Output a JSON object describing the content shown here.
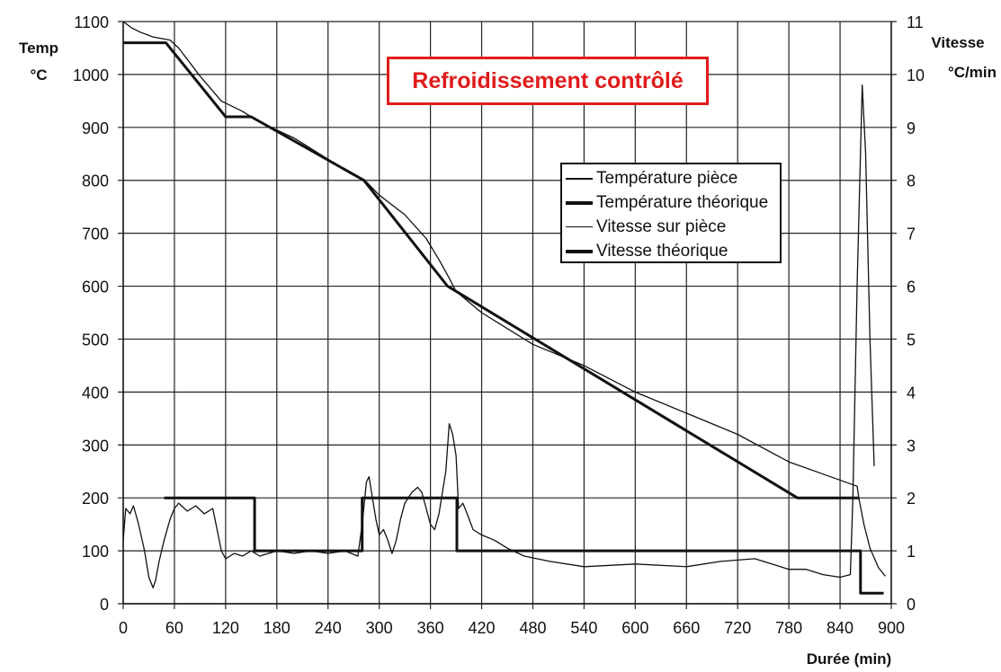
{
  "chart_data": {
    "type": "line",
    "title": "Refroidissement contrôlé",
    "xlabel": "Durée (min)",
    "ylabel_left": [
      "Temp",
      "°C"
    ],
    "ylabel_right": [
      "Vitesse",
      "°C/min"
    ],
    "xlim": [
      0,
      900
    ],
    "ylim_left": [
      0,
      1100
    ],
    "ylim_right": [
      0,
      11
    ],
    "x_ticks": [
      0,
      60,
      120,
      180,
      240,
      300,
      360,
      420,
      480,
      540,
      600,
      660,
      720,
      780,
      840,
      900
    ],
    "y_left_ticks": [
      0,
      100,
      200,
      300,
      400,
      500,
      600,
      700,
      800,
      900,
      1000,
      1100
    ],
    "y_right_ticks": [
      0,
      1,
      2,
      3,
      4,
      5,
      6,
      7,
      8,
      9,
      10,
      11
    ],
    "grid": true,
    "legend_position": "upper-right",
    "series": [
      {
        "name": "Température pièce",
        "axis": "left",
        "style": "thin",
        "points": [
          [
            0,
            1100
          ],
          [
            10,
            1088
          ],
          [
            20,
            1080
          ],
          [
            35,
            1071
          ],
          [
            55,
            1065
          ],
          [
            65,
            1050
          ],
          [
            90,
            997
          ],
          [
            115,
            950
          ],
          [
            140,
            930
          ],
          [
            160,
            910
          ],
          [
            200,
            880
          ],
          [
            240,
            840
          ],
          [
            270,
            810
          ],
          [
            285,
            797
          ],
          [
            300,
            772
          ],
          [
            330,
            735
          ],
          [
            355,
            690
          ],
          [
            370,
            650
          ],
          [
            382,
            615
          ],
          [
            390,
            590
          ],
          [
            420,
            550
          ],
          [
            450,
            520
          ],
          [
            480,
            490
          ],
          [
            540,
            450
          ],
          [
            600,
            400
          ],
          [
            660,
            360
          ],
          [
            720,
            320
          ],
          [
            780,
            268
          ],
          [
            820,
            245
          ],
          [
            860,
            222
          ],
          [
            862,
            200
          ],
          [
            868,
            150
          ],
          [
            875,
            105
          ],
          [
            885,
            68
          ],
          [
            893,
            52
          ]
        ]
      },
      {
        "name": "Température théorique",
        "axis": "left",
        "style": "thick",
        "points": [
          [
            0,
            1060
          ],
          [
            50,
            1060
          ],
          [
            120,
            920
          ],
          [
            150,
            920
          ],
          [
            282,
            800
          ],
          [
            380,
            600
          ],
          [
            790,
            200
          ],
          [
            862,
            200
          ]
        ]
      },
      {
        "name": "Vitesse sur pièce",
        "axis": "right",
        "style": "thin",
        "points": [
          [
            0,
            1.2
          ],
          [
            3,
            1.8
          ],
          [
            8,
            1.7
          ],
          [
            12,
            1.85
          ],
          [
            18,
            1.5
          ],
          [
            25,
            1.0
          ],
          [
            30,
            0.5
          ],
          [
            35,
            0.3
          ],
          [
            38,
            0.45
          ],
          [
            42,
            0.8
          ],
          [
            48,
            1.2
          ],
          [
            55,
            1.6
          ],
          [
            60,
            1.8
          ],
          [
            65,
            1.9
          ],
          [
            75,
            1.75
          ],
          [
            85,
            1.85
          ],
          [
            95,
            1.7
          ],
          [
            105,
            1.8
          ],
          [
            110,
            1.4
          ],
          [
            115,
            1.0
          ],
          [
            120,
            0.85
          ],
          [
            130,
            0.95
          ],
          [
            140,
            0.9
          ],
          [
            150,
            1.0
          ],
          [
            160,
            0.9
          ],
          [
            180,
            1.0
          ],
          [
            200,
            0.95
          ],
          [
            220,
            1.0
          ],
          [
            240,
            0.95
          ],
          [
            260,
            1.0
          ],
          [
            275,
            0.9
          ],
          [
            280,
            1.5
          ],
          [
            285,
            2.3
          ],
          [
            288,
            2.4
          ],
          [
            292,
            2.0
          ],
          [
            296,
            1.6
          ],
          [
            300,
            1.3
          ],
          [
            305,
            1.4
          ],
          [
            310,
            1.2
          ],
          [
            315,
            0.95
          ],
          [
            320,
            1.2
          ],
          [
            325,
            1.6
          ],
          [
            330,
            1.9
          ],
          [
            338,
            2.1
          ],
          [
            345,
            2.2
          ],
          [
            350,
            2.1
          ],
          [
            355,
            1.8
          ],
          [
            360,
            1.5
          ],
          [
            365,
            1.4
          ],
          [
            370,
            1.7
          ],
          [
            378,
            2.5
          ],
          [
            382,
            3.4
          ],
          [
            386,
            3.2
          ],
          [
            390,
            2.8
          ],
          [
            393,
            1.8
          ],
          [
            398,
            1.9
          ],
          [
            403,
            1.7
          ],
          [
            410,
            1.4
          ],
          [
            420,
            1.3
          ],
          [
            435,
            1.2
          ],
          [
            450,
            1.05
          ],
          [
            470,
            0.9
          ],
          [
            500,
            0.8
          ],
          [
            540,
            0.7
          ],
          [
            600,
            0.75
          ],
          [
            660,
            0.7
          ],
          [
            700,
            0.8
          ],
          [
            740,
            0.85
          ],
          [
            760,
            0.75
          ],
          [
            780,
            0.65
          ],
          [
            800,
            0.65
          ],
          [
            820,
            0.55
          ],
          [
            840,
            0.5
          ],
          [
            852,
            0.55
          ],
          [
            855,
            2.0
          ],
          [
            860,
            6.0
          ],
          [
            866,
            9.8
          ],
          [
            870,
            8.5
          ],
          [
            875,
            5.0
          ],
          [
            880,
            2.6
          ]
        ]
      },
      {
        "name": "Vitesse théorique",
        "axis": "right",
        "style": "thick",
        "points": [
          [
            48,
            2
          ],
          [
            154,
            2
          ],
          [
            154,
            1
          ],
          [
            280,
            1
          ],
          [
            280,
            2
          ],
          [
            391,
            2
          ],
          [
            391,
            1
          ],
          [
            864,
            1
          ],
          [
            864,
            0.2
          ],
          [
            891,
            0.2
          ]
        ]
      }
    ]
  },
  "colors": {
    "title": "#e01b1b",
    "lines": "#111111",
    "grid": "#222222"
  }
}
